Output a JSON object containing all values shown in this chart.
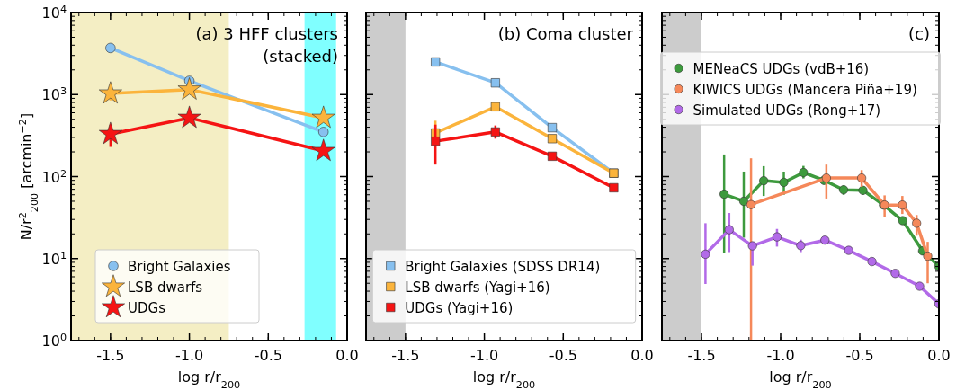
{
  "chart_data": [
    {
      "type": "line",
      "title": "(a) 3 HFF clusters\n(stacked)",
      "xlabel": "log r/r$_{200}$",
      "ylabel": "N/r$^{2}$$_{200}$ [arcmin$^{−2}$]",
      "log": "y",
      "xlim": [
        -1.75,
        0
      ],
      "ylim": [
        1,
        10000
      ],
      "xticks": [
        {
          "value": -1.5,
          "label": "-1.5"
        },
        {
          "value": -1.0,
          "label": "-1.0"
        },
        {
          "value": -0.5,
          "label": "-0.5"
        },
        {
          "value": 0,
          "label": "0.0"
        }
      ],
      "yticks": [
        {
          "value": 1,
          "label": "10$^{0}$"
        },
        {
          "value": 10,
          "label": "10$^{1}$"
        },
        {
          "value": 100,
          "label": "10$^{2}$"
        },
        {
          "value": 1000,
          "label": "10$^{3}$"
        },
        {
          "value": 10000,
          "label": "10$^{4}$"
        }
      ],
      "legend": "bottom left",
      "bands": [
        {
          "axis": "x",
          "from": -1.75,
          "to": -0.75,
          "color": "#f4eec4"
        },
        {
          "axis": "x",
          "from": -0.27,
          "to": -0.07,
          "color": "#80ffff"
        }
      ],
      "series": [
        {
          "name": "Bright Galaxies",
          "color": "#87c0ef",
          "marker": "circle",
          "x": [
            -1.5,
            -1.0,
            -0.15
          ],
          "values": [
            3700,
            1470,
            350
          ],
          "errors": [
            null,
            null,
            null
          ]
        },
        {
          "name": "LSB dwarfs",
          "color": "#fbb43c",
          "marker": "star",
          "x": [
            -1.5,
            -1.0,
            -0.15
          ],
          "values": [
            1030,
            1150,
            520
          ],
          "errors": [
            [
              850,
              1150
            ],
            null,
            null
          ]
        },
        {
          "name": "UDGs",
          "color": "#f51414",
          "marker": "star",
          "x": [
            -1.5,
            -1.0,
            -0.15
          ],
          "values": [
            330,
            520,
            205
          ],
          "errors": [
            [
              230,
              430
            ],
            null,
            null
          ]
        }
      ]
    },
    {
      "type": "line",
      "title": "(b) Coma cluster",
      "xlabel": "log r/r$_{200}$",
      "log": "y",
      "xlim": [
        -1.75,
        0
      ],
      "ylim": [
        1,
        10000
      ],
      "tick_labels": "x",
      "xticks": [
        {
          "value": -1.5,
          "label": "-1.5"
        },
        {
          "value": -1.0,
          "label": "-1.0"
        },
        {
          "value": -0.5,
          "label": "-0.5"
        },
        {
          "value": 0,
          "label": "0.0"
        }
      ],
      "yticks": [
        {
          "value": 1,
          "label": null
        },
        {
          "value": 10,
          "label": null
        },
        {
          "value": 100,
          "label": null
        },
        {
          "value": 1000,
          "label": null
        },
        {
          "value": 10000,
          "label": null
        }
      ],
      "legend": "bottom",
      "bands": [
        {
          "axis": "x",
          "from": -1.75,
          "to": -1.5,
          "color": "#cccccc"
        }
      ],
      "series": [
        {
          "name": "Bright Galaxies (SDSS DR14)",
          "color": "#87c0ef",
          "marker": "square",
          "x": [
            -1.31,
            -0.93,
            -0.57,
            -0.18
          ],
          "values": [
            2500,
            1390,
            395,
            110
          ],
          "errors": [
            null,
            null,
            null,
            null
          ]
        },
        {
          "name": "LSB dwarfs (Yagi+16)",
          "color": "#fbb43c",
          "marker": "square",
          "x": [
            -1.31,
            -0.93,
            -0.57,
            -0.18
          ],
          "values": [
            340,
            710,
            290,
            110
          ],
          "errors": [
            [
              250,
              480
            ],
            null,
            null,
            null
          ]
        },
        {
          "name": "UDGs (Yagi+16)",
          "color": "#f51414",
          "marker": "square",
          "x": [
            -1.31,
            -0.93,
            -0.57,
            -0.18
          ],
          "values": [
            270,
            350,
            177,
            73
          ],
          "errors": [
            [
              140,
              430
            ],
            [
              290,
              420
            ],
            null,
            null
          ]
        }
      ]
    },
    {
      "type": "line",
      "title": "(c)",
      "xlabel": "log r/r$_{200}$",
      "log": "y",
      "xlim": [
        -1.75,
        0
      ],
      "ylim": [
        1,
        10000
      ],
      "tick_labels": "x",
      "xticks": [
        {
          "value": -1.5,
          "label": "-1.5"
        },
        {
          "value": -1.0,
          "label": "-1.0"
        },
        {
          "value": -0.5,
          "label": "-0.5"
        },
        {
          "value": 0,
          "label": "0.0"
        }
      ],
      "yticks": [
        {
          "value": 1,
          "label": null
        },
        {
          "value": 10,
          "label": null
        },
        {
          "value": 100,
          "label": null
        },
        {
          "value": 1000,
          "label": null
        },
        {
          "value": 10000,
          "label": null
        }
      ],
      "legend": "top",
      "bands": [
        {
          "axis": "x",
          "from": -1.75,
          "to": -1.5,
          "color": "#cccccc"
        }
      ],
      "series": [
        {
          "name": "MENeaCS UDGs (vdB+16)",
          "color": "#3d9a3d",
          "marker": "circle",
          "x": [
            -1.357,
            -1.233,
            -1.107,
            -0.98,
            -0.856,
            -0.726,
            -0.602,
            -0.48,
            -0.35,
            -0.229,
            -0.103,
            0
          ],
          "values": [
            61,
            50,
            89,
            85,
            112,
            90,
            69,
            68,
            45,
            29,
            12.4,
            8
          ],
          "errors": [
            [
              11.8,
              186
            ],
            [
              18,
              115
            ],
            [
              58,
              134
            ],
            [
              60,
              115
            ],
            [
              95,
              135
            ],
            [
              80,
              100
            ],
            [
              60,
              78
            ],
            [
              60,
              76
            ],
            null,
            [
              26,
              32
            ],
            [
              11,
              14
            ],
            null
          ]
        },
        {
          "name": "KIWICS UDGs (Mancera Piña+19)",
          "color": "#f5885a",
          "marker": "circle",
          "x": [
            -1.187,
            -0.711,
            -0.488,
            -0.343,
            -0.231,
            -0.141,
            -0.071
          ],
          "values": [
            45.5,
            96,
            96,
            45,
            45,
            27,
            10.7
          ],
          "errors": [
            [
              1,
              167
            ],
            [
              54,
              140
            ],
            [
              75,
              120
            ],
            [
              32,
              59
            ],
            [
              35,
              58
            ],
            [
              19,
              34
            ],
            [
              5,
              16
            ]
          ]
        },
        {
          "name": "Simulated UDGs (Rong+17)",
          "color": "#b26ae8",
          "marker": "circle",
          "x": [
            -1.475,
            -1.325,
            -1.178,
            -1.023,
            -0.873,
            -0.72,
            -0.57,
            -0.423,
            -0.276,
            -0.122,
            0
          ],
          "values": [
            11.3,
            22.5,
            14.3,
            18.4,
            14.4,
            16.8,
            12.6,
            9.2,
            6.6,
            4.6,
            2.8
          ],
          "errors": [
            [
              4.9,
              27
            ],
            [
              12,
              36
            ],
            [
              8.2,
              15.4
            ],
            [
              14,
              23
            ],
            [
              12,
              17
            ],
            null,
            null,
            null,
            null,
            null,
            null
          ]
        }
      ]
    }
  ]
}
